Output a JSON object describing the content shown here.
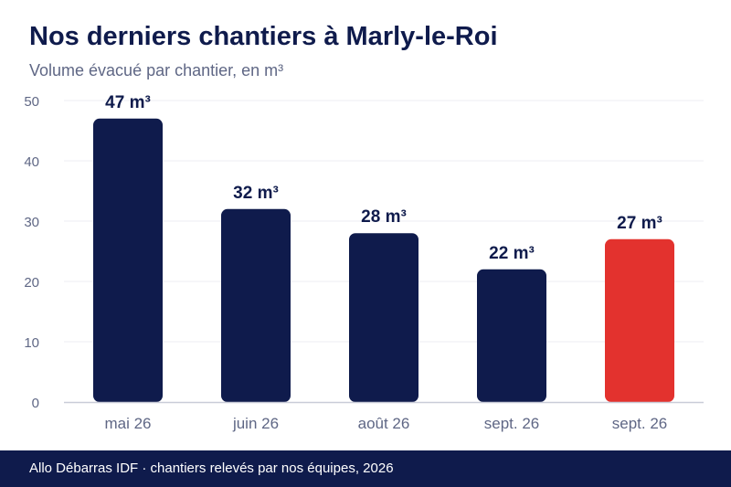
{
  "header": {
    "title": "Nos derniers chantiers à Marly-le-Roi",
    "subtitle": "Volume évacué par chantier, en m³"
  },
  "footer": {
    "text": "Allo Débarras IDF · chantiers relevés par nos équipes, 2026"
  },
  "colors": {
    "bar_default": "#0f1b4c",
    "bar_highlight": "#e3322e",
    "axis_text": "#5f6785",
    "value_label": "#0f1b4c",
    "grid": "#eceef3",
    "baseline": "#c9ccd8"
  },
  "chart_data": {
    "type": "bar",
    "title": "Nos derniers chantiers à Marly-le-Roi",
    "subtitle": "Volume évacué par chantier, en m³",
    "categories": [
      "mai 26",
      "juin 26",
      "août 26",
      "sept. 26",
      "sept. 26"
    ],
    "values": [
      47,
      32,
      28,
      22,
      27
    ],
    "value_labels": [
      "47 m³",
      "32 m³",
      "28 m³",
      "22 m³",
      "27 m³"
    ],
    "highlight_index": 4,
    "yticks": [
      0,
      10,
      20,
      30,
      40,
      50
    ],
    "ylim": [
      0,
      50
    ],
    "grid": true,
    "legend": "none"
  }
}
